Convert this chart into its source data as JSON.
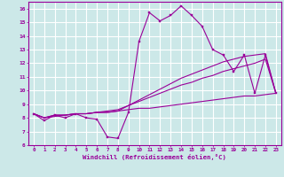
{
  "xlabel": "Windchill (Refroidissement éolien,°C)",
  "bg_color": "#cce8e8",
  "line_color": "#990099",
  "grid_color": "#ffffff",
  "hours": [
    0,
    1,
    2,
    3,
    4,
    5,
    6,
    7,
    8,
    9,
    10,
    11,
    12,
    13,
    14,
    15,
    16,
    17,
    18,
    19,
    20,
    21,
    22,
    23
  ],
  "series_spiky": [
    8.3,
    7.8,
    8.2,
    8.0,
    8.3,
    8.0,
    7.9,
    6.6,
    6.5,
    8.4,
    13.6,
    15.7,
    15.1,
    15.5,
    16.2,
    15.5,
    14.7,
    13.0,
    12.6,
    11.4,
    12.6,
    9.8,
    12.6,
    9.8
  ],
  "series_smooth1": [
    8.3,
    8.0,
    8.2,
    8.2,
    8.3,
    8.3,
    8.4,
    8.4,
    8.5,
    8.9,
    9.3,
    9.7,
    10.1,
    10.5,
    10.9,
    11.2,
    11.5,
    11.8,
    12.1,
    12.3,
    12.5,
    12.6,
    12.7,
    9.8
  ],
  "series_smooth2": [
    8.3,
    8.0,
    8.2,
    8.2,
    8.3,
    8.3,
    8.4,
    8.5,
    8.6,
    8.9,
    9.2,
    9.5,
    9.8,
    10.1,
    10.4,
    10.6,
    10.9,
    11.1,
    11.4,
    11.6,
    11.8,
    12.0,
    12.3,
    9.8
  ],
  "series_flat": [
    8.3,
    8.0,
    8.1,
    8.2,
    8.3,
    8.3,
    8.4,
    8.4,
    8.5,
    8.6,
    8.7,
    8.7,
    8.8,
    8.9,
    9.0,
    9.1,
    9.2,
    9.3,
    9.4,
    9.5,
    9.6,
    9.6,
    9.7,
    9.8
  ],
  "ylim": [
    6,
    16.5
  ],
  "yticks": [
    6,
    7,
    8,
    9,
    10,
    11,
    12,
    13,
    14,
    15,
    16
  ],
  "xticks": [
    0,
    1,
    2,
    3,
    4,
    5,
    6,
    7,
    8,
    9,
    10,
    11,
    12,
    13,
    14,
    15,
    16,
    17,
    18,
    19,
    20,
    21,
    22,
    23
  ]
}
